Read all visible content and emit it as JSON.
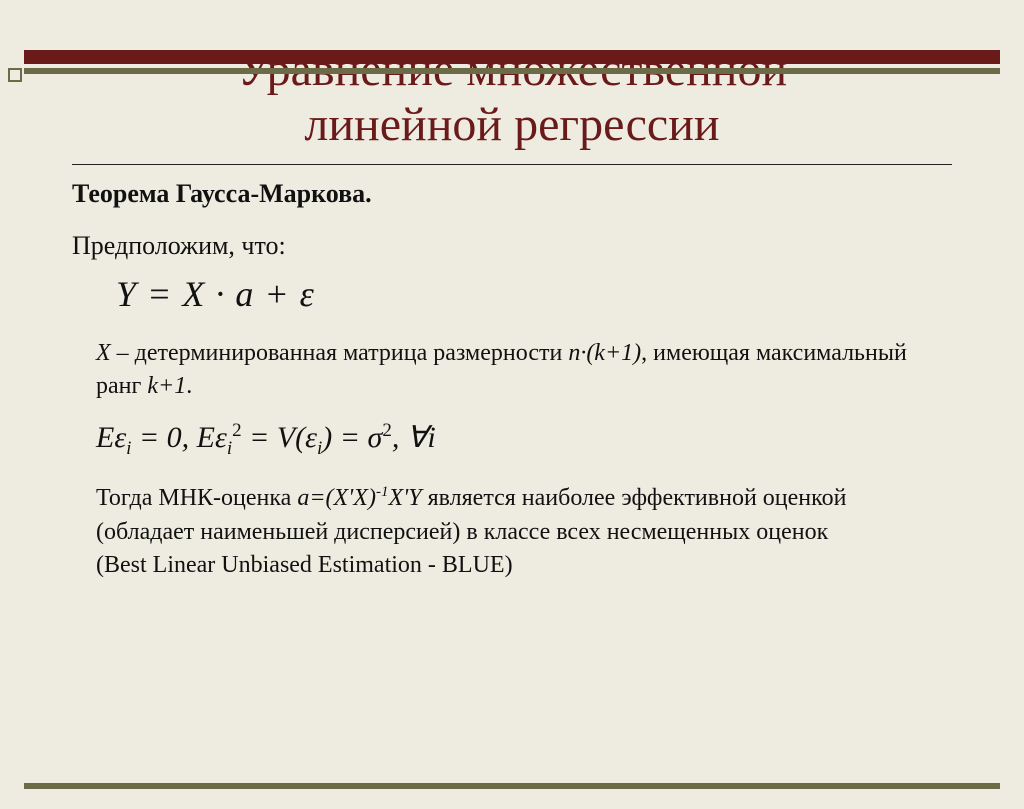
{
  "colors": {
    "background": "#eeece1",
    "accentDark": "#6b1a1a",
    "accentOlive": "#6b6b47",
    "text": "#111111"
  },
  "title": {
    "line1": "Уравнение множественной",
    "line2": "линейной регрессии",
    "fontSize": 48,
    "color": "#6b1a1a"
  },
  "theorem": "Теорема Гаусса-Маркова.",
  "assume": "Предположим, что:",
  "equation1": {
    "Y": "Y",
    "eq": " = ",
    "X": "X",
    "dot": " · ",
    "a": "a",
    "plus": " + ",
    "eps": "ε"
  },
  "xDescription": {
    "prefix": "X",
    "mid": " – детерминированная матрица размерности ",
    "dim": "n·(k+1)",
    "tail1": ", имеющая максимальный  ранг ",
    "rank": "k+1",
    "tail2": "."
  },
  "equation2": {
    "p1": "Eε",
    "sub_i1": "i",
    "p2": " = 0, Eε",
    "sub_i2": "i",
    "sup_2": "2",
    "p3": " = V(ε",
    "sub_i3": "i",
    "p4": ") = σ",
    "sup_2b": "2",
    "p5": ", ∀i"
  },
  "conclusion": {
    "l1a": "Тогда МНК-оценка ",
    "est": "a=(X'X)",
    "sup": "-1",
    "est2": "X'Y",
    "l1b": " является наиболее эффективной оценкой",
    "l2": "(обладает наименьшей дисперсией) в классе всех несмещенных оценок",
    "l3": "(Best Linear Unbiased Estimation - BLUE)"
  }
}
